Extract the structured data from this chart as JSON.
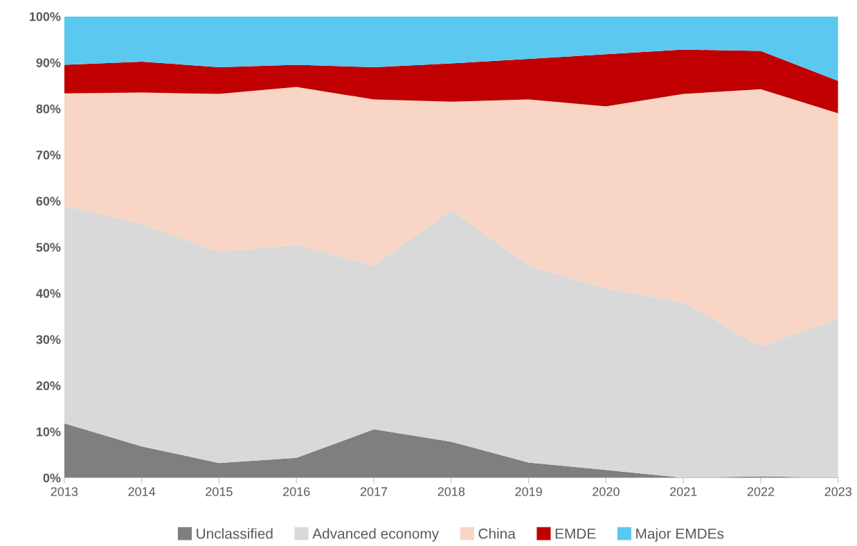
{
  "chart_data": {
    "type": "area",
    "stacked": true,
    "x": [
      2013,
      2014,
      2015,
      2016,
      2017,
      2018,
      2019,
      2020,
      2021,
      2022,
      2023
    ],
    "xlim": [
      2013,
      2023
    ],
    "xticks": [
      2013,
      2014,
      2015,
      2016,
      2017,
      2018,
      2019,
      2020,
      2021,
      2022,
      2023
    ],
    "ylim": [
      0,
      100
    ],
    "yticks": [
      {
        "value": 0,
        "label": "0%"
      },
      {
        "value": 10,
        "label": "10%"
      },
      {
        "value": 20,
        "label": "20%"
      },
      {
        "value": 30,
        "label": "30%"
      },
      {
        "value": 40,
        "label": "40%"
      },
      {
        "value": 50,
        "label": "50%"
      },
      {
        "value": 60,
        "label": "60%"
      },
      {
        "value": 70,
        "label": "70%"
      },
      {
        "value": 80,
        "label": "80%"
      },
      {
        "value": 90,
        "label": "90%"
      },
      {
        "value": 100,
        "label": "100%"
      }
    ],
    "grid": false,
    "legend": "bottom",
    "series": [
      {
        "name": "Unclassified",
        "color": "#7f7f7f",
        "values": [
          11.8,
          6.8,
          3.2,
          4.3,
          10.5,
          7.8,
          3.3,
          1.7,
          0,
          0.3,
          0
        ]
      },
      {
        "name": "Advanced economy",
        "color": "#d9d9d9",
        "values": [
          47.2,
          48.2,
          45.8,
          46.2,
          35.5,
          50.2,
          42.7,
          39.3,
          38,
          28.2,
          34.5
        ]
      },
      {
        "name": "China",
        "color": "#f8d5c5",
        "values": [
          24.3,
          28.5,
          34.2,
          34.2,
          36,
          23.5,
          36,
          39.5,
          45.2,
          55.7,
          44.5
        ]
      },
      {
        "name": "EMDE",
        "color": "#c00000",
        "values": [
          6.2,
          6.7,
          5.8,
          4.8,
          7,
          8.3,
          8.8,
          11.3,
          9.6,
          8.3,
          7
        ]
      },
      {
        "name": "Major EMDEs",
        "color": "#5bc8f0",
        "values": [
          10.5,
          9.8,
          11,
          10.5,
          11,
          10.2,
          9.2,
          8.2,
          7.2,
          7.5,
          14
        ]
      }
    ]
  }
}
